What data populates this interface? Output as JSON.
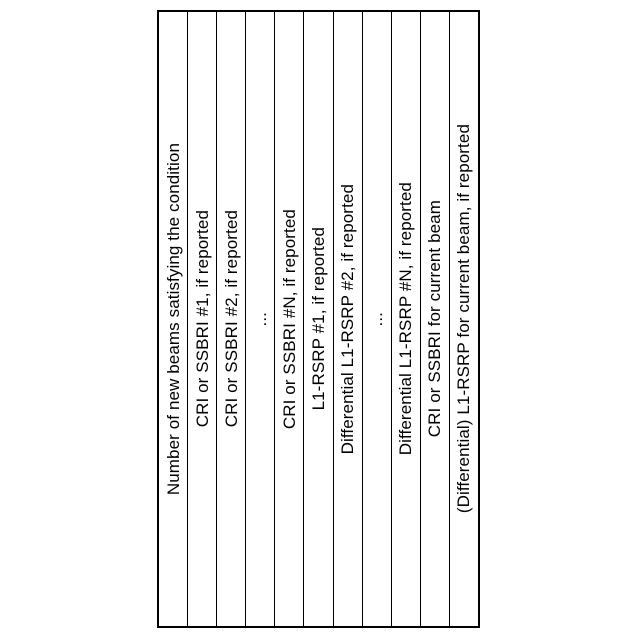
{
  "colors": {
    "page_bg": "#ffffff",
    "border_color": "#000000",
    "text_color": "#000000"
  },
  "table": {
    "cells": [
      {
        "label": "Number of new beams satisfying the condition"
      },
      {
        "label": "CRI or SSBRI #1, if reported"
      },
      {
        "label": "CRI or SSBRI #2, if reported"
      },
      {
        "label": "..."
      },
      {
        "label": "CRI or SSBRI #N, if reported"
      },
      {
        "label": "L1-RSRP #1, if reported"
      },
      {
        "label": "Differential L1-RSRP #2, if reported"
      },
      {
        "label": "..."
      },
      {
        "label": "Differential L1-RSRP #N, if reported"
      },
      {
        "label": "CRI or SSBRI for current beam"
      },
      {
        "label": "(Differential) L1-RSRP for current beam, if reported"
      }
    ]
  }
}
